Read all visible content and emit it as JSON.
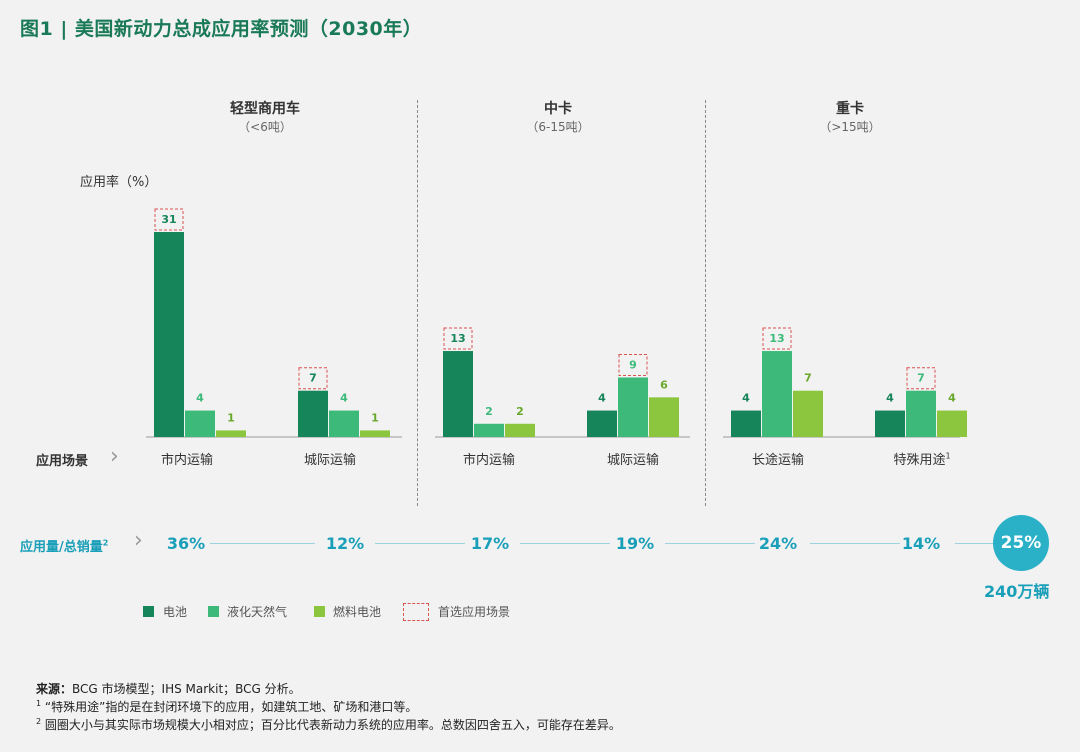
{
  "title": "图1 | 美国新动力总成应用率预测（2030年）",
  "y_axis_label": "应用率（%）",
  "groups": [
    {
      "title": "轻型商用车",
      "subtitle": "（<6吨）"
    },
    {
      "title": "中卡",
      "subtitle": "（6-15吨）"
    },
    {
      "title": "重卡",
      "subtitle": "（>15吨）"
    }
  ],
  "scenario_row_label": "应用场景",
  "scenarios": [
    "市内运输",
    "城际运输",
    "市内运输",
    "城际运输",
    "长途运输",
    "特殊用途"
  ],
  "scenario_footnote_mark": "1",
  "ratio_row_label": "应用量/总销量",
  "ratio_row_mark": "2",
  "ratios": [
    "36%",
    "12%",
    "17%",
    "19%",
    "24%",
    "14%"
  ],
  "total_ratio": "25%",
  "total_units": "240万辆",
  "legend": {
    "battery": "电池",
    "lng": "液化天然气",
    "fuel_cell": "燃料电池",
    "preferred": "首选应用场景"
  },
  "colors": {
    "battery": "#16855a",
    "lng": "#3dba7a",
    "fuel_cell": "#8cc63f",
    "preferred_box": "#d9534f",
    "accent": "#1a9fb8"
  },
  "chart_data": {
    "type": "bar",
    "categories": [
      "市内运输",
      "城际运输",
      "市内运输",
      "城际运输",
      "长途运输",
      "特殊用途"
    ],
    "category_groups": [
      "轻型商用车",
      "轻型商用车",
      "中卡",
      "中卡",
      "重卡",
      "重卡"
    ],
    "series": [
      {
        "name": "电池",
        "values": [
          31,
          7,
          13,
          4,
          4,
          4
        ]
      },
      {
        "name": "液化天然气",
        "values": [
          4,
          4,
          2,
          9,
          13,
          7
        ]
      },
      {
        "name": "燃料电池",
        "values": [
          1,
          1,
          2,
          6,
          7,
          4
        ]
      }
    ],
    "preferred_series_index": [
      0,
      0,
      0,
      1,
      1,
      1
    ],
    "ylabel": "应用率（%）",
    "ylim": [
      0,
      31
    ]
  },
  "notes": {
    "source_label": "来源：",
    "source_text": "BCG 市场模型；IHS Markit；BCG 分析。",
    "note1_mark": "1",
    "note1": "“特殊用途”指的是在封闭环境下的应用，如建筑工地、矿场和港口等。",
    "note2_mark": "2",
    "note2": "圆圈大小与其实际市场规模大小相对应；百分比代表新动力系统的应用率。总数因四舍五入，可能存在差异。"
  }
}
